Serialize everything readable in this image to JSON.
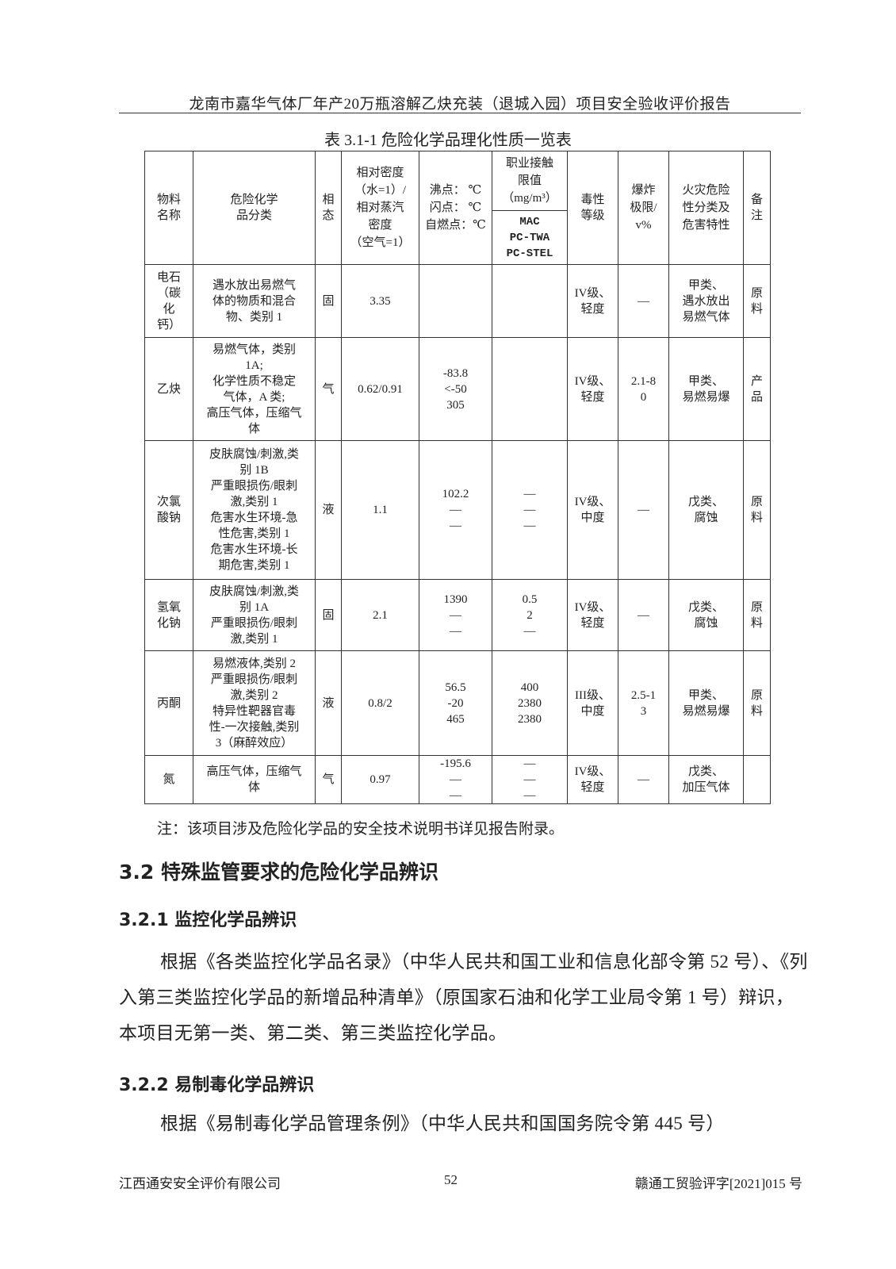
{
  "header": {
    "title": "龙南市嘉华气体厂年产20万瓶溶解乙炔充装（退城入园）项目安全验收评价报告"
  },
  "table": {
    "caption": "表 3.1-1   危险化学品理化性质一览表",
    "headers": {
      "name": [
        "物料",
        "名称"
      ],
      "hazard_class": [
        "危险化学",
        "品分类"
      ],
      "phase": [
        "相",
        "态"
      ],
      "density": [
        "相对密度",
        "（水=1）/",
        "相对蒸汽",
        "密度",
        "（空气=1）"
      ],
      "points": [
        "沸点：   ℃",
        "闪点：   ℃",
        "自燃点：℃"
      ],
      "oel": [
        "职业接触",
        "限值",
        "（mg/m³）"
      ],
      "oel_sub": [
        "MAC",
        "PC-TWA",
        "PC-STEL"
      ],
      "toxicity": [
        "毒性",
        "等级"
      ],
      "explosive": [
        "爆炸",
        "极限/",
        "v%"
      ],
      "fire": [
        "火灾危险",
        "性分类及",
        "危害特性"
      ],
      "remark": [
        "备",
        "注"
      ]
    },
    "rows": [
      {
        "name": [
          "电石",
          "（碳",
          "化",
          "钙）"
        ],
        "hazard_class": [
          "遇水放出易燃气",
          "体的物质和混合",
          "物、类别 1"
        ],
        "phase": [
          "固"
        ],
        "density": [
          "3.35"
        ],
        "points": [],
        "oel": [],
        "toxicity": [
          "IV级、",
          "轻度"
        ],
        "explosive": [
          "—"
        ],
        "fire": [
          "甲类、",
          "遇水放出",
          "易燃气体"
        ],
        "remark": [
          "原",
          "料"
        ]
      },
      {
        "name": [
          "乙炔"
        ],
        "hazard_class": [
          "易燃气体，类别",
          "1A;",
          "化学性质不稳定",
          "气体，A 类;",
          "高压气体，压缩气",
          "体"
        ],
        "phase": [
          "气"
        ],
        "density": [
          "0.62/0.91"
        ],
        "points": [
          "-83.8",
          "<-50",
          "305"
        ],
        "oel": [],
        "toxicity": [
          "IV级、",
          "轻度"
        ],
        "explosive": [
          "2.1-8",
          "0"
        ],
        "fire": [
          "甲类、",
          "易燃易爆"
        ],
        "remark": [
          "产",
          "品"
        ]
      },
      {
        "name": [
          "次氯",
          "酸钠"
        ],
        "hazard_class": [
          "皮肤腐蚀/刺激,类",
          "别 1B",
          "严重眼损伤/眼刺",
          "激,类别 1",
          "危害水生环境-急",
          "性危害,类别 1",
          "危害水生环境-长",
          "期危害,类别 1"
        ],
        "phase": [
          "液"
        ],
        "density": [
          "1.1"
        ],
        "points": [
          "102.2",
          "—",
          "—"
        ],
        "oel": [
          "—",
          "—",
          "—"
        ],
        "toxicity": [
          "IV级、",
          "中度"
        ],
        "explosive": [
          "—"
        ],
        "fire": [
          "戊类、",
          "腐蚀"
        ],
        "remark": [
          "原",
          "料"
        ]
      },
      {
        "name": [
          "氢氧",
          "化钠"
        ],
        "hazard_class": [
          "皮肤腐蚀/刺激,类",
          "别 1A",
          "严重眼损伤/眼刺",
          "激,类别 1"
        ],
        "phase": [
          "固"
        ],
        "density": [
          "2.1"
        ],
        "points": [
          "1390",
          "—",
          "—"
        ],
        "oel": [
          "0.5",
          "2",
          "—"
        ],
        "toxicity": [
          "IV级、",
          "轻度"
        ],
        "explosive": [
          "—"
        ],
        "fire": [
          "戊类、",
          "腐蚀"
        ],
        "remark": [
          "原",
          "料"
        ]
      },
      {
        "name": [
          "丙酮"
        ],
        "hazard_class": [
          "易燃液体,类别 2",
          "严重眼损伤/眼刺",
          "激,类别 2",
          "特异性靶器官毒",
          "性-一次接触,类别",
          "3（麻醉效应）"
        ],
        "phase": [
          "液"
        ],
        "density": [
          "0.8/2"
        ],
        "points": [
          "56.5",
          "-20",
          "465"
        ],
        "oel": [
          "400",
          "2380",
          "2380"
        ],
        "toxicity": [
          "III级、",
          "中度"
        ],
        "explosive": [
          "2.5-1",
          "3"
        ],
        "fire": [
          "甲类、",
          "易燃易爆"
        ],
        "remark": [
          "原",
          "料"
        ]
      },
      {
        "name": [
          "氮"
        ],
        "hazard_class": [
          "高压气体，压缩气",
          "体"
        ],
        "phase": [
          "气"
        ],
        "density": [
          "0.97"
        ],
        "points": [
          "-195.6",
          "—",
          "—"
        ],
        "oel": [
          "—",
          "—",
          "—"
        ],
        "toxicity": [
          "IV级、",
          "轻度"
        ],
        "explosive": [
          "—"
        ],
        "fire": [
          "戊类、",
          "加压气体"
        ],
        "remark": []
      }
    ],
    "note": "注：该项目涉及危险化学品的安全技术说明书详见报告附录。"
  },
  "sections": {
    "s32": "3.2 特殊监管要求的危险化学品辨识",
    "s321": "3.2.1 监控化学品辨识",
    "p321": "根据《各类监控化学品名录》（中华人民共和国工业和信息化部令第 52 号）、《列入第三类监控化学品的新增品种清单》（原国家石油和化学工业局令第 1 号）辩识，本项目无第一类、第二类、第三类监控化学品。",
    "s322": "3.2.2 易制毒化学品辨识",
    "p322": "根据《易制毒化学品管理条例》（中华人民共和国国务院令第 445 号）"
  },
  "footer": {
    "company": "江西通安安全评价有限公司",
    "page": "52",
    "doc_no": "赣通工贸验评字[2021]015 号"
  }
}
